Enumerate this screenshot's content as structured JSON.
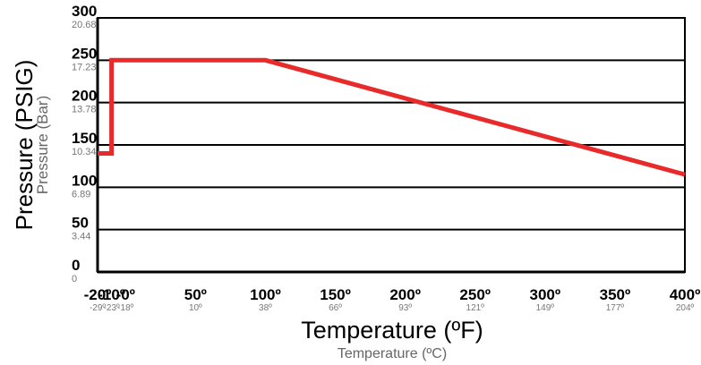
{
  "chart_data": {
    "type": "line",
    "title": "",
    "xlabel": "Temperature (ºF)",
    "xlabel_secondary": "Temperature (ºC)",
    "ylabel": "Pressure (PSIG)",
    "ylabel_secondary": "Pressure (Bar)",
    "xlim": [
      -20,
      400
    ],
    "ylim": [
      0,
      300
    ],
    "grid": "horizontal",
    "x_ticks": [
      {
        "value": -20,
        "label": "-20º",
        "sub": "-29º"
      },
      {
        "value": -10,
        "label": "-10º",
        "sub": "-23º"
      },
      {
        "value": 0,
        "label": "-0º",
        "sub": "-18º"
      },
      {
        "value": 50,
        "label": "50º",
        "sub": "10º"
      },
      {
        "value": 100,
        "label": "100º",
        "sub": "38º"
      },
      {
        "value": 150,
        "label": "150º",
        "sub": "66º"
      },
      {
        "value": 200,
        "label": "200º",
        "sub": "93º"
      },
      {
        "value": 250,
        "label": "250º",
        "sub": "121º"
      },
      {
        "value": 300,
        "label": "300º",
        "sub": "149º"
      },
      {
        "value": 350,
        "label": "350º",
        "sub": "177º"
      },
      {
        "value": 400,
        "label": "400º",
        "sub": "204º"
      }
    ],
    "y_ticks": [
      {
        "value": 0,
        "label": "0",
        "sub": "0"
      },
      {
        "value": 50,
        "label": "50",
        "sub": "3.44"
      },
      {
        "value": 100,
        "label": "100",
        "sub": "6.89"
      },
      {
        "value": 150,
        "label": "150",
        "sub": "10.34"
      },
      {
        "value": 200,
        "label": "200",
        "sub": "13.78"
      },
      {
        "value": 250,
        "label": "250",
        "sub": "17.23"
      },
      {
        "value": 300,
        "label": "300",
        "sub": "20.68"
      }
    ],
    "series": [
      {
        "color": "#e82a2a",
        "x": [
          -20,
          -10,
          -10,
          100,
          400
        ],
        "y": [
          140,
          140,
          250,
          250,
          115
        ]
      }
    ]
  }
}
